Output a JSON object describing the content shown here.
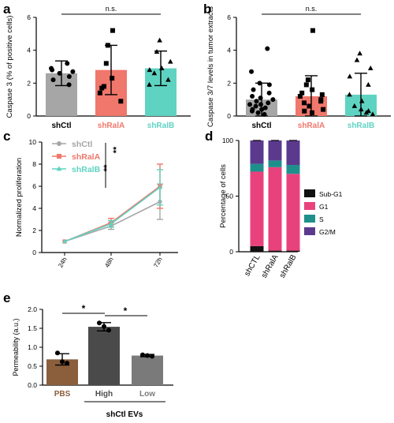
{
  "panels": [
    {
      "letter": "a"
    },
    {
      "letter": "b"
    },
    {
      "letter": "c"
    },
    {
      "letter": "d"
    },
    {
      "letter": "e"
    }
  ],
  "colors": {
    "shCtl": "#a6a6a6",
    "shRalA": "#f0776b",
    "shRalB": "#5fd3c1",
    "pbs": "#8b5e3c",
    "high": "#4a4a4a",
    "low": "#7a7a7a",
    "subG1": "#111111",
    "G1": "#e8427c",
    "S": "#1f8f8c",
    "G2M": "#5b3a8e"
  },
  "chart_data": [
    {
      "panel": "a",
      "type": "bar",
      "ylabel": "Caspase 3 (% of positive cells)",
      "ylim": [
        0,
        6
      ],
      "yticks": [
        0,
        2,
        4,
        6
      ],
      "categories": [
        "shCtl",
        "shRalA",
        "shRalB"
      ],
      "values": [
        2.6,
        2.8,
        2.9
      ],
      "errors": [
        0.75,
        1.5,
        1.05
      ],
      "markers": [
        "circle",
        "square",
        "triangle"
      ],
      "points": [
        [
          3.2,
          2.9,
          2.6,
          2.4,
          2.2,
          1.9,
          2.8,
          2.7
        ],
        [
          5.2,
          4.3,
          3.2,
          2.3,
          1.7,
          1.4,
          0.9,
          1.8
        ],
        [
          4.6,
          3.9,
          3.3,
          2.8,
          2.2,
          1.9,
          2.9,
          2.6
        ]
      ],
      "significance": "n.s."
    },
    {
      "panel": "b",
      "type": "bar",
      "ylabel": "Caspase 3/7 levels in tumor extracts",
      "ylim": [
        0,
        6
      ],
      "yticks": [
        0,
        2,
        4,
        6
      ],
      "categories": [
        "shCtl",
        "shRalA",
        "shRalB"
      ],
      "values": [
        1.0,
        1.2,
        1.3
      ],
      "errors": [
        1.0,
        1.25,
        1.3
      ],
      "markers": [
        "circle",
        "square",
        "triangle"
      ],
      "points": [
        [
          4.1,
          2.7,
          2.0,
          1.9,
          1.6,
          1.4,
          1.2,
          1.0,
          0.9,
          0.8,
          0.7,
          0.6,
          0.5,
          0.4,
          0.3,
          0.2,
          0.1,
          1.1,
          0.7,
          0.4
        ],
        [
          5.2,
          2.2,
          1.9,
          1.6,
          1.4,
          1.2,
          1.0,
          0.8,
          0.6,
          0.4,
          0.3,
          0.2,
          1.3,
          0.9
        ],
        [
          3.8,
          3.4,
          2.9,
          2.4,
          1.9,
          1.3,
          0.9,
          0.6,
          0.4,
          0.3,
          0.2,
          0.1
        ]
      ],
      "significance": "n.s."
    },
    {
      "panel": "c",
      "type": "line",
      "ylabel": "Normalized proliferation",
      "ylim": [
        0,
        10
      ],
      "yticks": [
        0,
        2,
        4,
        6,
        8,
        10
      ],
      "x": [
        "24h",
        "48h",
        "72h"
      ],
      "series": [
        {
          "name": "shCtl",
          "values": [
            1.0,
            2.4,
            4.6
          ],
          "errors": [
            0,
            0.3,
            1.6
          ],
          "marker": "circle"
        },
        {
          "name": "shRalA",
          "values": [
            1.0,
            2.7,
            6.0
          ],
          "errors": [
            0,
            0.4,
            2.0
          ],
          "marker": "square"
        },
        {
          "name": "shRalB",
          "values": [
            1.0,
            2.6,
            5.9
          ],
          "errors": [
            0,
            0.3,
            1.6
          ],
          "marker": "triangle"
        }
      ],
      "significance": [
        "**",
        "**"
      ]
    },
    {
      "panel": "d",
      "type": "bar",
      "stacked": true,
      "ylabel": "Percentage of cells",
      "ylim": [
        0,
        100
      ],
      "yticks": [
        0,
        50,
        100
      ],
      "categories": [
        "shCTL",
        "shRalA",
        "shRalB"
      ],
      "series": [
        {
          "name": "Sub-G1",
          "values": [
            5,
            1,
            1
          ]
        },
        {
          "name": "G1",
          "values": [
            67,
            75,
            69
          ]
        },
        {
          "name": "S",
          "values": [
            7,
            6,
            8
          ]
        },
        {
          "name": "G2/M",
          "values": [
            21,
            18,
            22
          ]
        }
      ]
    },
    {
      "panel": "e",
      "type": "bar",
      "ylabel": "Permeability (a.u.)",
      "ylim": [
        0,
        2.0
      ],
      "yticks": [
        0.0,
        0.5,
        1.0,
        1.5,
        2.0
      ],
      "categories": [
        "PBS",
        "High",
        "Low"
      ],
      "values": [
        0.68,
        1.54,
        0.78
      ],
      "errors": [
        0.15,
        0.11,
        0.03
      ],
      "points": [
        [
          0.85,
          0.62,
          0.58
        ],
        [
          1.64,
          1.55,
          1.45
        ],
        [
          0.8,
          0.78,
          0.76
        ]
      ],
      "group_label": "shCtl EVs",
      "significance": [
        "*",
        "*"
      ]
    }
  ]
}
